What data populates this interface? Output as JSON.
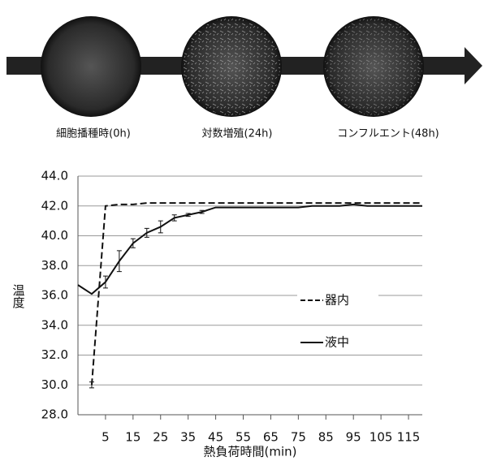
{
  "header": {
    "images": [
      {
        "label": "細胞播種時(0h)"
      },
      {
        "label": "対数増殖(24h)"
      },
      {
        "label": "コンフルエント(48h)"
      }
    ]
  },
  "chart_data": {
    "type": "line",
    "y_label": "温度",
    "x_label": "熱負荷時間(min)",
    "x": [
      -5,
      0,
      5,
      10,
      15,
      20,
      25,
      30,
      35,
      40,
      45,
      50,
      55,
      60,
      65,
      70,
      75,
      80,
      85,
      90,
      95,
      100,
      105,
      110,
      115,
      120
    ],
    "series": [
      {
        "name": "器内",
        "color": "#111111",
        "dash": true,
        "values": [
          null,
          30.0,
          42.0,
          42.1,
          42.1,
          42.2,
          42.2,
          42.2,
          42.2,
          42.2,
          42.2,
          42.2,
          42.2,
          42.2,
          42.2,
          42.2,
          42.2,
          42.2,
          42.2,
          42.2,
          42.2,
          42.2,
          42.2,
          42.2,
          42.2,
          42.2
        ],
        "errors": [
          null,
          0.2,
          null,
          null,
          null,
          null,
          null,
          null,
          null,
          null,
          null,
          null,
          null,
          null,
          null,
          null,
          null,
          null,
          null,
          null,
          null,
          null,
          null,
          null,
          null,
          null
        ]
      },
      {
        "name": "液中",
        "color": "#111111",
        "dash": false,
        "values": [
          36.7,
          36.1,
          36.9,
          38.3,
          39.5,
          40.2,
          40.6,
          41.2,
          41.4,
          41.6,
          41.9,
          41.9,
          41.9,
          41.9,
          41.9,
          41.9,
          41.9,
          42.0,
          42.0,
          42.0,
          42.1,
          42.0,
          42.0,
          42.0,
          42.0,
          42.0
        ],
        "errors": [
          null,
          null,
          0.4,
          0.7,
          0.3,
          0.3,
          0.4,
          0.2,
          0.1,
          0.1,
          null,
          null,
          null,
          null,
          null,
          null,
          null,
          null,
          null,
          null,
          null,
          null,
          null,
          null,
          null,
          null
        ]
      }
    ],
    "xlim": [
      -5,
      120
    ],
    "xticks": [
      5,
      15,
      25,
      35,
      45,
      55,
      65,
      75,
      85,
      95,
      105,
      115
    ],
    "ylim": [
      28,
      44
    ],
    "yticks": [
      {
        "value": 28,
        "label": "28.0"
      },
      {
        "value": 30,
        "label": "30.0"
      },
      {
        "value": 32,
        "label": "32.0"
      },
      {
        "value": 34,
        "label": "34.0"
      },
      {
        "value": 36,
        "label": "36.0"
      },
      {
        "value": 38,
        "label": "38.0"
      },
      {
        "value": 40,
        "label": "40.0"
      },
      {
        "value": 42,
        "label": "42.0"
      },
      {
        "value": 44,
        "label": "44.0"
      }
    ],
    "grid": true,
    "legend": "inside-right"
  }
}
